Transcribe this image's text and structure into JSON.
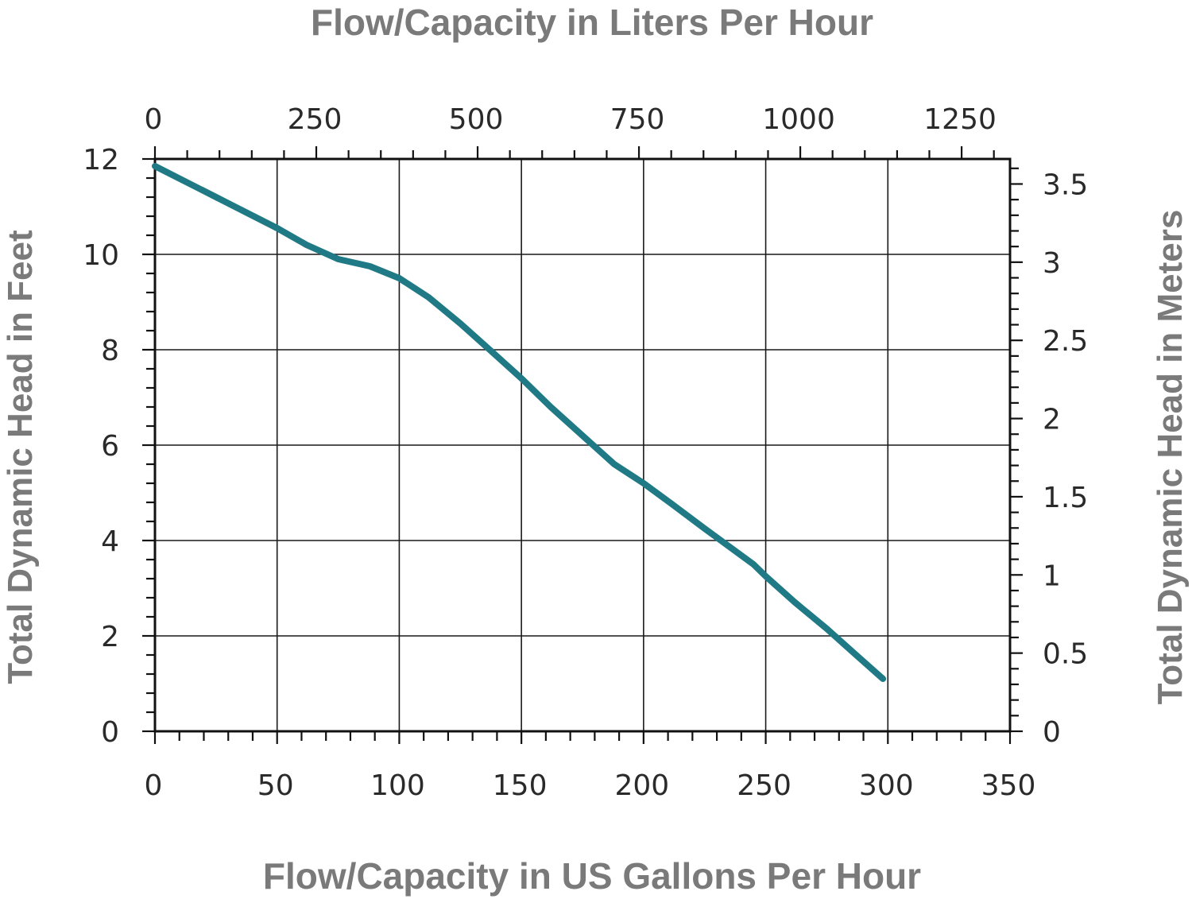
{
  "chart_data": {
    "type": "line",
    "title": "",
    "x_bottom": {
      "label": "Flow/Capacity in US Gallons Per Hour",
      "min": 0,
      "max": 350,
      "ticks": [
        0,
        50,
        100,
        150,
        200,
        250,
        300,
        350
      ]
    },
    "x_top": {
      "label": "Flow/Capacity in Liters Per Hour",
      "min": 0,
      "max": 1325,
      "ticks": [
        0,
        250,
        500,
        750,
        1000,
        1250
      ]
    },
    "y_left": {
      "label": "Total Dynamic Head in Feet",
      "min": 0,
      "max": 12,
      "ticks": [
        0,
        2,
        4,
        6,
        8,
        10,
        12
      ]
    },
    "y_right": {
      "label": "Total Dynamic Head in Meters",
      "min": 0,
      "max": 3.66,
      "ticks": [
        "0",
        "0.5",
        "1",
        "1.5",
        "2",
        "2.5",
        "3",
        "3.5"
      ]
    },
    "grid": true,
    "series": [
      {
        "color": "#1f7a86",
        "x": [
          0,
          25,
          50,
          62,
          75,
          88,
          100,
          112,
          125,
          137,
          150,
          162,
          175,
          188,
          200,
          212,
          225,
          237,
          245,
          250,
          262,
          275,
          287,
          298
        ],
        "y": [
          11.85,
          11.2,
          10.55,
          10.2,
          9.9,
          9.75,
          9.5,
          9.1,
          8.55,
          8.0,
          7.4,
          6.8,
          6.2,
          5.6,
          5.2,
          4.75,
          4.25,
          3.8,
          3.5,
          3.25,
          2.7,
          2.15,
          1.6,
          1.1
        ]
      }
    ]
  }
}
